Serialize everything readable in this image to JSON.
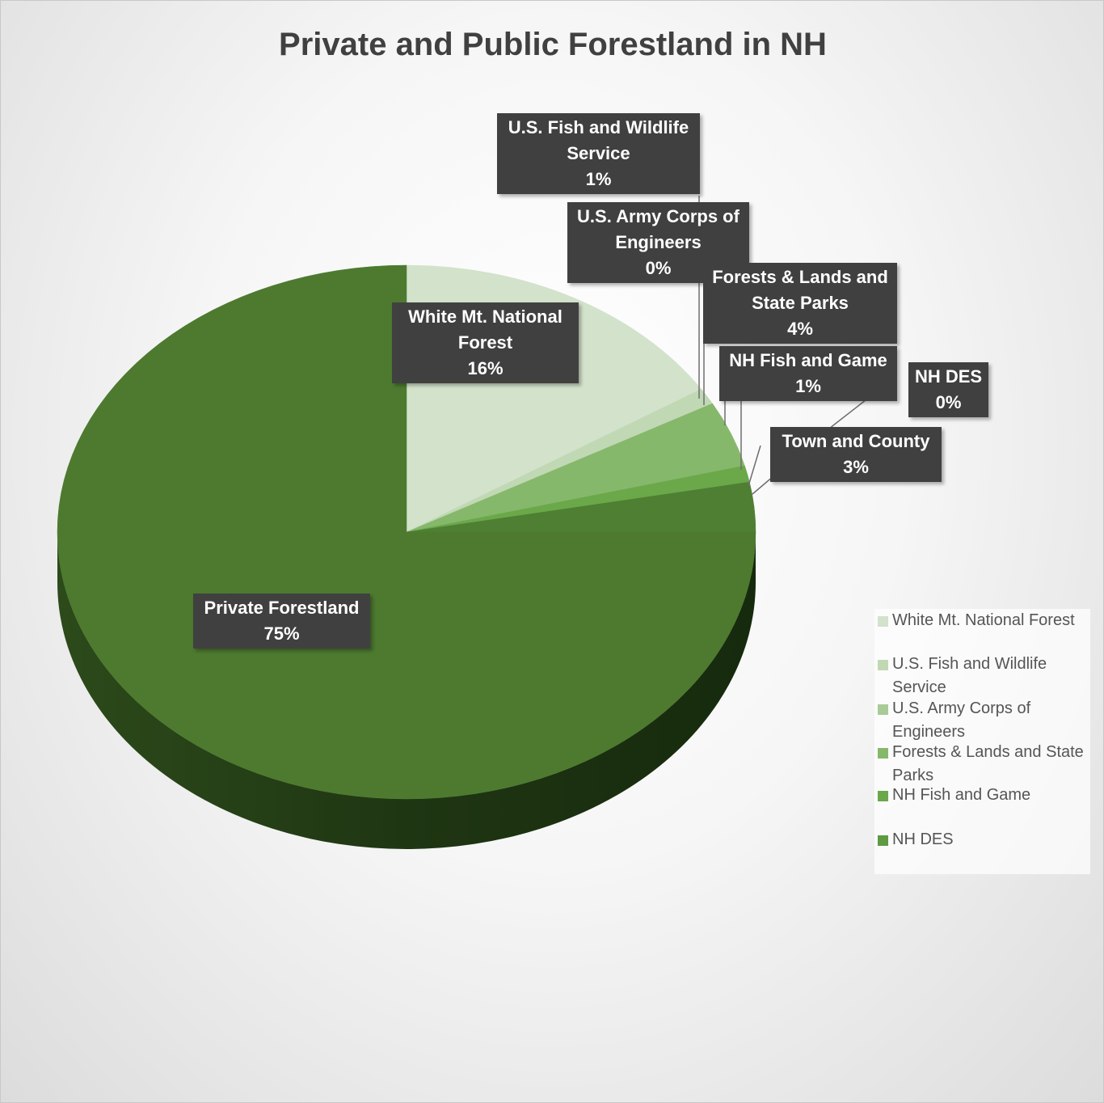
{
  "chart_data": {
    "type": "pie",
    "title": "Private and Public Forestland in NH",
    "categories": [
      "White Mt. National Forest",
      "U.S. Fish and Wildlife Service",
      "U.S. Army Corps of Engineers",
      "Forests & Lands and State Parks",
      "NH Fish and Game",
      "NH DES",
      "Town and County",
      "Private Forestland"
    ],
    "values": [
      16,
      1,
      0,
      4,
      1,
      0,
      3,
      75
    ],
    "value_labels": [
      "16%",
      "1%",
      "0%",
      "4%",
      "1%",
      "0%",
      "3%",
      "75%"
    ],
    "colors": [
      "#d3e2cb",
      "#c1d8b4",
      "#a9cb96",
      "#86b86b",
      "#6aa84a",
      "#5e9a42",
      "#4f7f33",
      "#4d7a2f"
    ],
    "legend": "right"
  }
}
